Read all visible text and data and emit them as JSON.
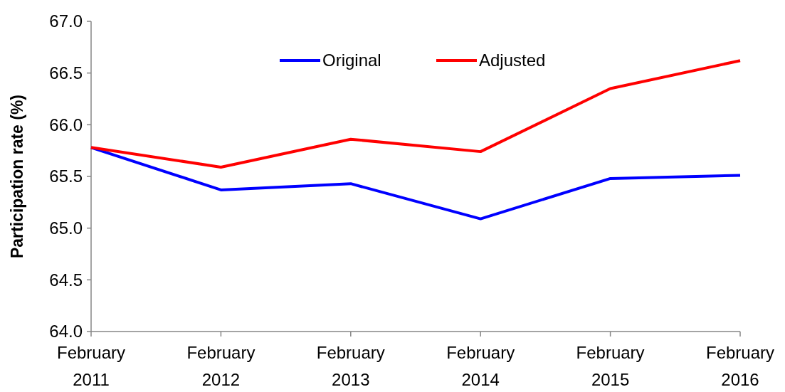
{
  "chart_data": {
    "type": "line",
    "ylabel": "Participation rate (%)",
    "categories": [
      "February 2011",
      "February 2012",
      "February 2013",
      "February 2014",
      "February 2015",
      "February 2016"
    ],
    "series": [
      {
        "name": "Original",
        "color": "#0000ff",
        "values": [
          65.78,
          65.37,
          65.43,
          65.09,
          65.48,
          65.51
        ]
      },
      {
        "name": "Adjusted",
        "color": "#ff0000",
        "values": [
          65.78,
          65.59,
          65.86,
          65.74,
          66.35,
          66.62
        ]
      }
    ],
    "ylim": [
      64,
      67
    ],
    "yticks": [
      {
        "value": 64,
        "label": "64.0"
      },
      {
        "value": 64.5,
        "label": "64.5"
      },
      {
        "value": 65,
        "label": "65.0"
      },
      {
        "value": 65.5,
        "label": "65.5"
      },
      {
        "value": 66,
        "label": "66.0"
      },
      {
        "value": 66.5,
        "label": "66.5"
      },
      {
        "value": 67,
        "label": "67.0"
      }
    ],
    "grid": false,
    "legend": "top",
    "line_style": "solid"
  }
}
